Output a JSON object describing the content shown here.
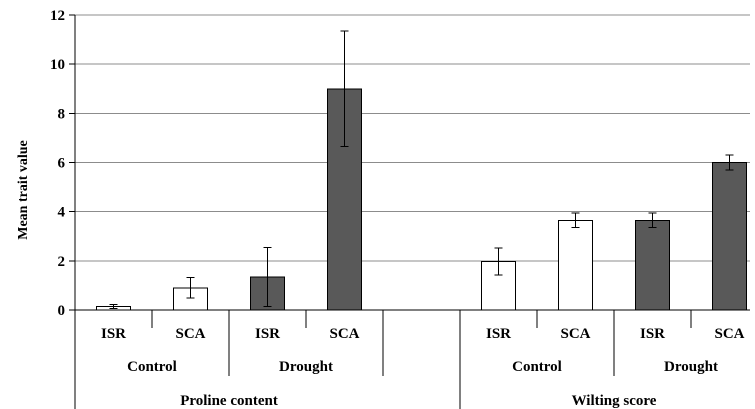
{
  "chart_data": {
    "type": "bar",
    "title": "",
    "ylabel": "Mean trait value",
    "ylim": [
      0,
      12
    ],
    "yticks": [
      0,
      2,
      4,
      6,
      8,
      10,
      12
    ],
    "grid": true,
    "colors": {
      "Control": "#ffffff",
      "Drought": "#595959"
    },
    "groups": [
      {
        "trait": "Proline content",
        "conditions": [
          {
            "name": "Control",
            "bars": [
              {
                "genotype": "ISR",
                "value": 0.15,
                "error": 0.08
              },
              {
                "genotype": "SCA",
                "value": 0.9,
                "error": 0.42
              }
            ]
          },
          {
            "name": "Drought",
            "bars": [
              {
                "genotype": "ISR",
                "value": 1.35,
                "error": 1.2
              },
              {
                "genotype": "SCA",
                "value": 9.0,
                "error": 2.35
              }
            ]
          }
        ]
      },
      {
        "trait": "Wilting score",
        "conditions": [
          {
            "name": "Control",
            "bars": [
              {
                "genotype": "ISR",
                "value": 1.97,
                "error": 0.55
              },
              {
                "genotype": "SCA",
                "value": 3.65,
                "error": 0.3
              }
            ]
          },
          {
            "name": "Drought",
            "bars": [
              {
                "genotype": "ISR",
                "value": 3.65,
                "error": 0.3
              },
              {
                "genotype": "SCA",
                "value": 6.0,
                "error": 0.3
              }
            ]
          }
        ]
      }
    ]
  }
}
